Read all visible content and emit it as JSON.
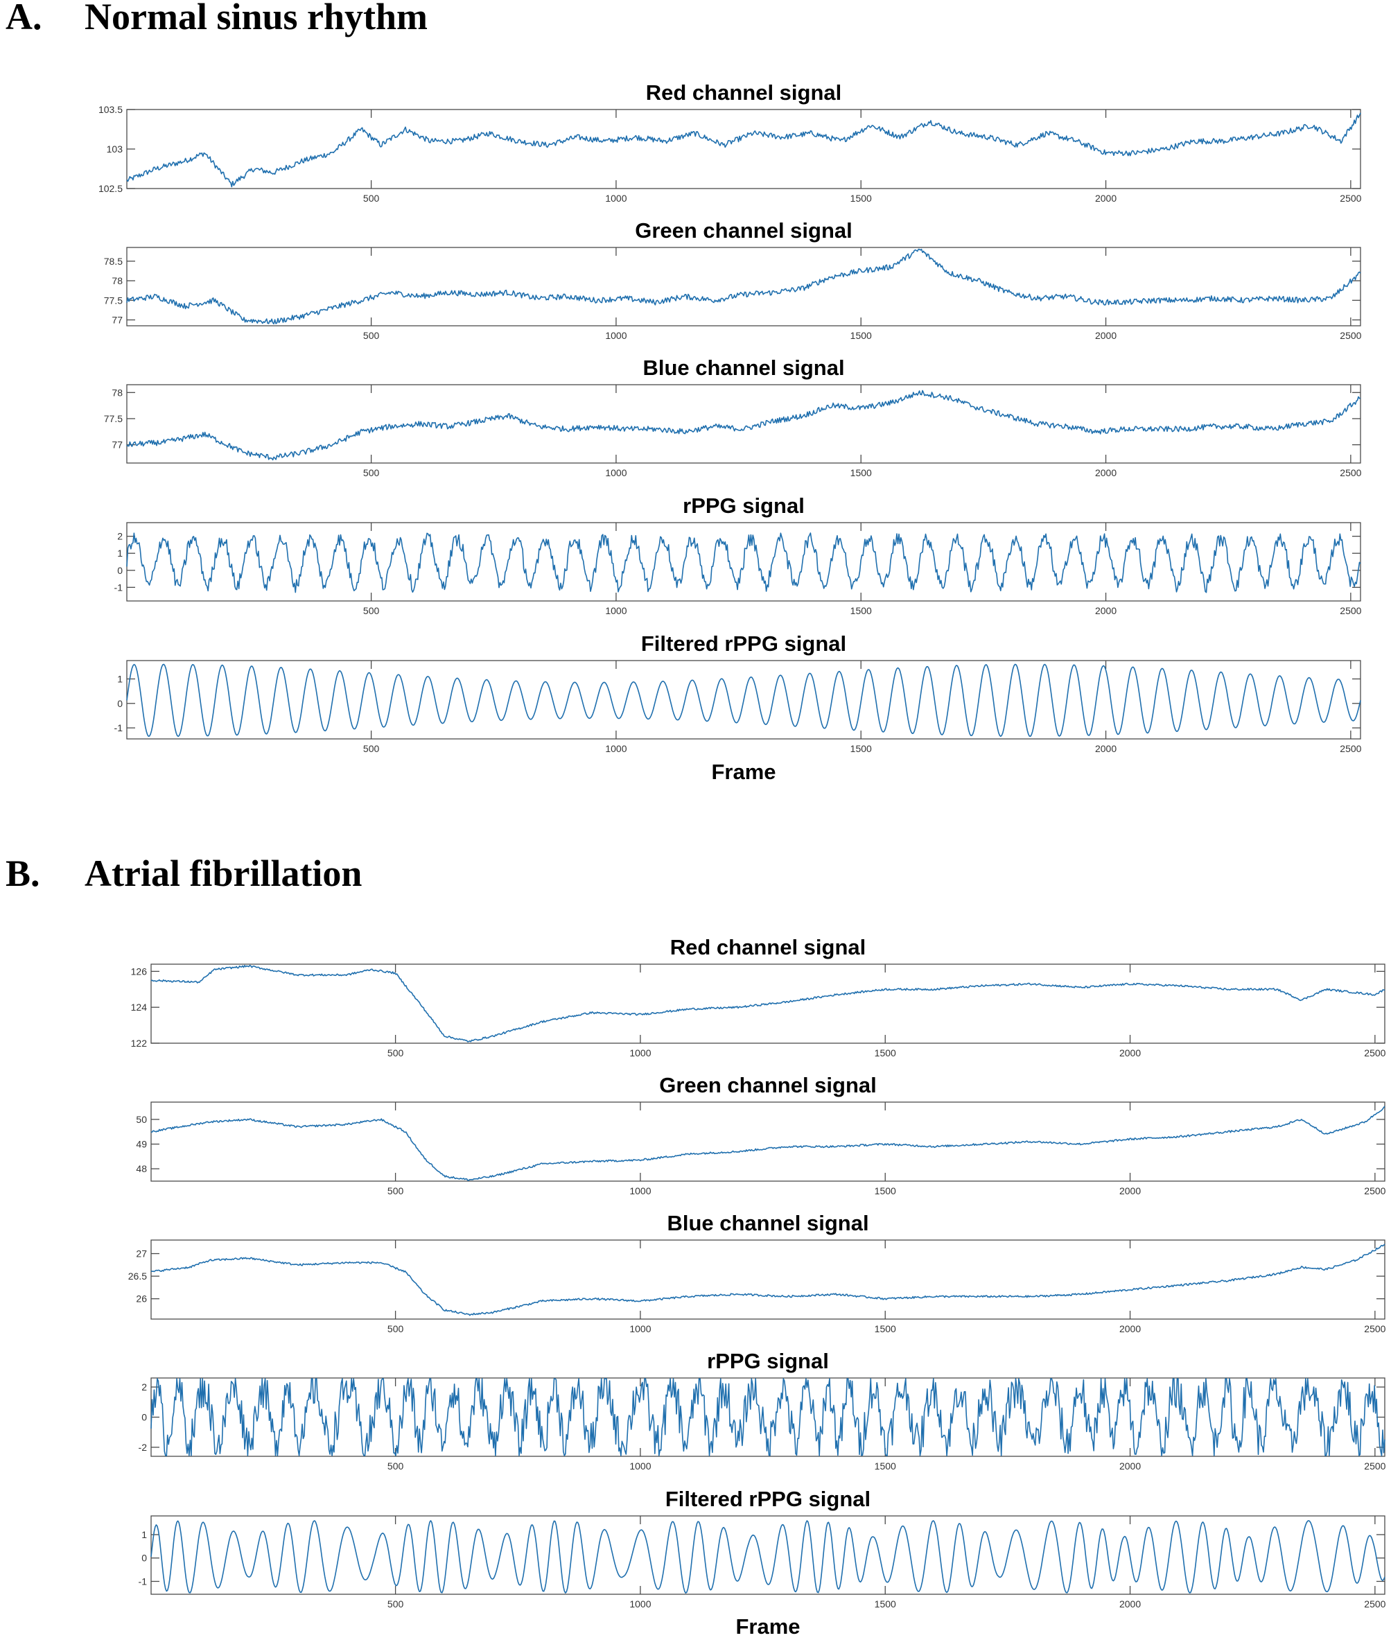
{
  "chart_data": [
    {
      "panel": "A.",
      "heading": "Normal sinus rhythm",
      "type": "line",
      "xlabel": "Frame",
      "xlim": [
        1,
        2520
      ],
      "xticks": [
        500,
        1000,
        1500,
        2000,
        2500
      ],
      "color": "#1f6fae",
      "subplots": [
        {
          "title": "Red channel signal",
          "ylim": [
            102.5,
            103.5
          ],
          "yticks": [
            102.5,
            103,
            103.5
          ],
          "ytick_labels": [
            "102.5",
            "103",
            "103.5"
          ],
          "x": [
            1,
            60,
            120,
            160,
            215,
            260,
            300,
            360,
            420,
            480,
            520,
            570,
            620,
            680,
            740,
            800,
            860,
            920,
            980,
            1040,
            1100,
            1160,
            1220,
            1280,
            1340,
            1400,
            1460,
            1520,
            1580,
            1640,
            1700,
            1760,
            1820,
            1880,
            1940,
            2000,
            2060,
            2120,
            2180,
            2240,
            2300,
            2360,
            2420,
            2480,
            2520
          ],
          "values": [
            102.6,
            102.75,
            102.85,
            102.95,
            102.55,
            102.75,
            102.7,
            102.85,
            102.95,
            103.25,
            103.05,
            103.25,
            103.1,
            103.1,
            103.2,
            103.1,
            103.05,
            103.15,
            103.1,
            103.15,
            103.1,
            103.2,
            103.05,
            103.2,
            103.15,
            103.2,
            103.1,
            103.3,
            103.15,
            103.35,
            103.2,
            103.15,
            103.05,
            103.2,
            103.1,
            102.95,
            102.95,
            103.0,
            103.1,
            103.1,
            103.15,
            103.2,
            103.3,
            103.1,
            103.45
          ]
        },
        {
          "title": "Green channel signal",
          "ylim": [
            76.85,
            78.85
          ],
          "yticks": [
            77,
            77.5,
            78,
            78.5
          ],
          "ytick_labels": [
            "77",
            "77.5",
            "78",
            "78.5"
          ],
          "x": [
            1,
            60,
            120,
            180,
            240,
            300,
            360,
            420,
            480,
            540,
            600,
            660,
            720,
            780,
            840,
            900,
            960,
            1020,
            1080,
            1140,
            1200,
            1260,
            1320,
            1380,
            1440,
            1500,
            1560,
            1620,
            1680,
            1740,
            1800,
            1860,
            1920,
            1980,
            2040,
            2100,
            2160,
            2220,
            2280,
            2340,
            2400,
            2460,
            2520
          ],
          "values": [
            77.5,
            77.6,
            77.35,
            77.5,
            77.0,
            76.95,
            77.1,
            77.3,
            77.5,
            77.7,
            77.6,
            77.7,
            77.65,
            77.7,
            77.55,
            77.6,
            77.5,
            77.55,
            77.45,
            77.6,
            77.5,
            77.65,
            77.7,
            77.8,
            78.1,
            78.25,
            78.35,
            78.8,
            78.2,
            78.0,
            77.7,
            77.55,
            77.6,
            77.45,
            77.45,
            77.5,
            77.5,
            77.55,
            77.5,
            77.55,
            77.5,
            77.55,
            78.2
          ]
        },
        {
          "title": "Blue channel signal",
          "ylim": [
            76.65,
            78.15
          ],
          "yticks": [
            77,
            77.5,
            78
          ],
          "ytick_labels": [
            "77",
            "77.5",
            "78"
          ],
          "x": [
            1,
            80,
            160,
            240,
            300,
            360,
            420,
            480,
            540,
            600,
            660,
            720,
            780,
            840,
            900,
            960,
            1020,
            1080,
            1140,
            1200,
            1260,
            1320,
            1380,
            1440,
            1500,
            1560,
            1620,
            1680,
            1740,
            1800,
            1860,
            1920,
            1980,
            2040,
            2100,
            2160,
            2220,
            2280,
            2340,
            2400,
            2460,
            2520
          ],
          "values": [
            77.0,
            77.05,
            77.2,
            76.85,
            76.75,
            76.85,
            77.0,
            77.25,
            77.35,
            77.4,
            77.35,
            77.45,
            77.55,
            77.35,
            77.3,
            77.35,
            77.3,
            77.3,
            77.25,
            77.35,
            77.3,
            77.45,
            77.55,
            77.75,
            77.7,
            77.8,
            78.0,
            77.9,
            77.7,
            77.55,
            77.4,
            77.35,
            77.25,
            77.3,
            77.3,
            77.3,
            77.35,
            77.35,
            77.3,
            77.4,
            77.45,
            77.9
          ]
        },
        {
          "title": "rPPG signal",
          "ylim": [
            -1.8,
            2.8
          ],
          "yticks": [
            -1,
            0,
            1,
            2
          ],
          "ytick_labels": [
            "-1",
            "0",
            "1",
            "2"
          ],
          "beat_count": 42,
          "peak_value": 2.2,
          "trough_value": -1.3
        },
        {
          "title": "Filtered rPPG signal",
          "ylim": [
            -1.45,
            1.75
          ],
          "yticks": [
            -1,
            0,
            1
          ],
          "ytick_labels": [
            "-1",
            "0",
            "1"
          ],
          "beat_count": 42,
          "peak_value": 1.6,
          "trough_value": -1.35
        }
      ]
    },
    {
      "panel": "B.",
      "heading": "Atrial fibrillation",
      "type": "line",
      "xlabel": "Frame",
      "xlim": [
        1,
        2520
      ],
      "xticks": [
        500,
        1000,
        1500,
        2000,
        2500
      ],
      "color": "#1f6fae",
      "subplots": [
        {
          "title": "Red channel signal",
          "ylim": [
            122,
            126.4
          ],
          "yticks": [
            122,
            124,
            126
          ],
          "ytick_labels": [
            "122",
            "124",
            "126"
          ],
          "x": [
            1,
            100,
            130,
            200,
            300,
            400,
            450,
            500,
            550,
            600,
            650,
            700,
            800,
            900,
            1000,
            1100,
            1200,
            1300,
            1400,
            1500,
            1600,
            1700,
            1800,
            1900,
            2000,
            2100,
            2200,
            2300,
            2350,
            2400,
            2500,
            2520
          ],
          "values": [
            125.5,
            125.4,
            126.1,
            126.3,
            125.8,
            125.8,
            126.1,
            125.9,
            124.2,
            122.4,
            122.1,
            122.4,
            123.2,
            123.7,
            123.6,
            123.9,
            124.0,
            124.3,
            124.7,
            125.0,
            125.0,
            125.2,
            125.3,
            125.1,
            125.3,
            125.2,
            125.0,
            125.0,
            124.4,
            125.0,
            124.7,
            125.0
          ]
        },
        {
          "title": "Green channel signal",
          "ylim": [
            47.5,
            50.7
          ],
          "yticks": [
            48,
            49,
            50
          ],
          "ytick_labels": [
            "48",
            "49",
            "50"
          ],
          "x": [
            1,
            60,
            120,
            200,
            300,
            400,
            470,
            520,
            560,
            600,
            650,
            700,
            800,
            900,
            1000,
            1100,
            1200,
            1300,
            1400,
            1500,
            1600,
            1700,
            1800,
            1900,
            2000,
            2100,
            2200,
            2300,
            2350,
            2400,
            2480,
            2520
          ],
          "values": [
            49.5,
            49.7,
            49.9,
            50.0,
            49.7,
            49.8,
            50.0,
            49.5,
            48.4,
            47.7,
            47.55,
            47.7,
            48.2,
            48.3,
            48.35,
            48.6,
            48.7,
            48.9,
            48.9,
            49.0,
            48.9,
            49.0,
            49.1,
            49.0,
            49.2,
            49.3,
            49.5,
            49.7,
            50.0,
            49.4,
            49.9,
            50.5
          ]
        },
        {
          "title": "Blue channel signal",
          "ylim": [
            25.55,
            27.3
          ],
          "yticks": [
            26,
            26.5,
            27
          ],
          "ytick_labels": [
            "26",
            "26.5",
            "27"
          ],
          "x": [
            1,
            80,
            120,
            200,
            300,
            400,
            470,
            520,
            560,
            600,
            650,
            700,
            800,
            900,
            1000,
            1100,
            1200,
            1300,
            1400,
            1500,
            1600,
            1700,
            1800,
            1900,
            2000,
            2100,
            2200,
            2300,
            2350,
            2400,
            2460,
            2520
          ],
          "values": [
            26.6,
            26.7,
            26.85,
            26.9,
            26.75,
            26.8,
            26.8,
            26.6,
            26.1,
            25.75,
            25.65,
            25.7,
            25.95,
            26.0,
            25.95,
            26.05,
            26.1,
            26.05,
            26.1,
            26.0,
            26.05,
            26.05,
            26.05,
            26.1,
            26.2,
            26.3,
            26.4,
            26.55,
            26.7,
            26.65,
            26.85,
            27.2
          ]
        },
        {
          "title": "rPPG signal",
          "ylim": [
            -2.6,
            2.6
          ],
          "yticks": [
            -2,
            0,
            2
          ],
          "ytick_labels": [
            "-2",
            "0",
            "2"
          ],
          "beat_count": 46,
          "peak_value": 2.4,
          "trough_value": -2.3
        },
        {
          "title": "Filtered rPPG signal",
          "ylim": [
            -1.55,
            1.8
          ],
          "yticks": [
            -1,
            0,
            1
          ],
          "ytick_labels": [
            "-1",
            "0",
            "1"
          ],
          "beat_count": 46,
          "peak_value": 1.6,
          "trough_value": -1.5
        }
      ]
    }
  ]
}
